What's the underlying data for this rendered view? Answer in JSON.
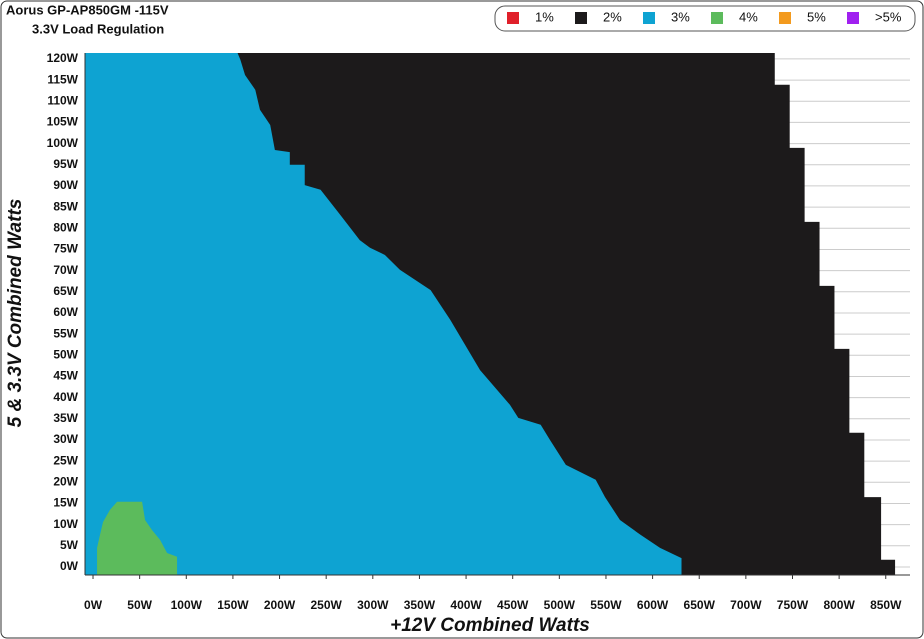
{
  "chart_data": {
    "type": "region",
    "title": "Aorus GP-AP850GM -115V",
    "subtitle": "3.3V Load Regulation",
    "x_label": "+12V Combined Watts",
    "y_label": "5 & 3.3V Combined Watts",
    "xlim": [
      -8.6,
      876
    ],
    "ylim": [
      -1.9,
      121.4
    ],
    "xticks": [
      {
        "value": 0,
        "label": "0W"
      },
      {
        "value": 50,
        "label": "50W"
      },
      {
        "value": 100,
        "label": "100W"
      },
      {
        "value": 150,
        "label": "150W"
      },
      {
        "value": 200,
        "label": "200W"
      },
      {
        "value": 250,
        "label": "250W"
      },
      {
        "value": 300,
        "label": "300W"
      },
      {
        "value": 350,
        "label": "350W"
      },
      {
        "value": 400,
        "label": "400W"
      },
      {
        "value": 450,
        "label": "450W"
      },
      {
        "value": 500,
        "label": "500W"
      },
      {
        "value": 550,
        "label": "550W"
      },
      {
        "value": 600,
        "label": "600W"
      },
      {
        "value": 650,
        "label": "650W"
      },
      {
        "value": 700,
        "label": "700W"
      },
      {
        "value": 750,
        "label": "750W"
      },
      {
        "value": 800,
        "label": "800W"
      },
      {
        "value": 850,
        "label": "850W"
      }
    ],
    "yticks": [
      {
        "value": 0,
        "label": "0W"
      },
      {
        "value": 5,
        "label": "5W"
      },
      {
        "value": 10,
        "label": "10W"
      },
      {
        "value": 15,
        "label": "15W"
      },
      {
        "value": 20,
        "label": "20W"
      },
      {
        "value": 25,
        "label": "25W"
      },
      {
        "value": 30,
        "label": "30W"
      },
      {
        "value": 35,
        "label": "35W"
      },
      {
        "value": 40,
        "label": "40W"
      },
      {
        "value": 45,
        "label": "45W"
      },
      {
        "value": 50,
        "label": "50W"
      },
      {
        "value": 55,
        "label": "55W"
      },
      {
        "value": 60,
        "label": "60W"
      },
      {
        "value": 65,
        "label": "65W"
      },
      {
        "value": 70,
        "label": "70W"
      },
      {
        "value": 75,
        "label": "75W"
      },
      {
        "value": 80,
        "label": "80W"
      },
      {
        "value": 85,
        "label": "85W"
      },
      {
        "value": 90,
        "label": "90W"
      },
      {
        "value": 95,
        "label": "95W"
      },
      {
        "value": 100,
        "label": "100W"
      },
      {
        "value": 105,
        "label": "105W"
      },
      {
        "value": 110,
        "label": "110W"
      },
      {
        "value": 115,
        "label": "115W"
      },
      {
        "value": 120,
        "label": "120W"
      }
    ],
    "grid": true,
    "legend": "top-right",
    "series": [
      {
        "name": "1%",
        "color": "#e0202a",
        "x": [],
        "y": []
      },
      {
        "name": "2%",
        "color": "#1c1a1b",
        "x": [
          0,
          860,
          860,
          845,
          845,
          827,
          827,
          811,
          811,
          795,
          795,
          779,
          779,
          763,
          763,
          747,
          747,
          731,
          731,
          0
        ],
        "y": [
          -1.9,
          -1.9,
          1.7,
          1.7,
          16.5,
          16.5,
          31.7,
          31.7,
          51.5,
          51.5,
          66.4,
          66.4,
          81.5,
          81.5,
          99,
          99,
          113.9,
          113.9,
          121.4,
          121.4
        ]
      },
      {
        "name": "3%",
        "color": "#0ea3d2",
        "x": [
          -8.6,
          631,
          631,
          608,
          587,
          565,
          549,
          539,
          507,
          490,
          480,
          456,
          447,
          415,
          383,
          362,
          329,
          313,
          297,
          286,
          265,
          244,
          227,
          227,
          211,
          211,
          195,
          190,
          179,
          174,
          163,
          158,
          155,
          -8.6
        ],
        "y": [
          -1.9,
          -1.9,
          2.1,
          4.5,
          7.6,
          11.1,
          16.5,
          20.6,
          24.1,
          30.0,
          33.6,
          35.2,
          38.3,
          46.5,
          58.4,
          65.4,
          70.2,
          73.7,
          75.4,
          77.2,
          83.2,
          89.1,
          90.2,
          95.0,
          95.0,
          98.0,
          98.5,
          104.4,
          108.0,
          112.7,
          116.2,
          119.8,
          121.4,
          121.4
        ]
      },
      {
        "name": "4%",
        "color": "#5cbb5c",
        "x": [
          4.3,
          4.3,
          7.5,
          10.7,
          18.2,
          25.8,
          52.6,
          55.8,
          63.3,
          71.9,
          79.4,
          90.1,
          90.1
        ],
        "y": [
          -1.9,
          4.5,
          7.6,
          10.6,
          13.5,
          15.4,
          15.4,
          11.1,
          8.7,
          6.4,
          3.3,
          2.4,
          -1.9
        ]
      },
      {
        "name": "5%",
        "color": "#f39a1e",
        "x": [],
        "y": []
      },
      {
        "name": ">5%",
        "color": "#a020f0",
        "x": [],
        "y": []
      }
    ]
  }
}
